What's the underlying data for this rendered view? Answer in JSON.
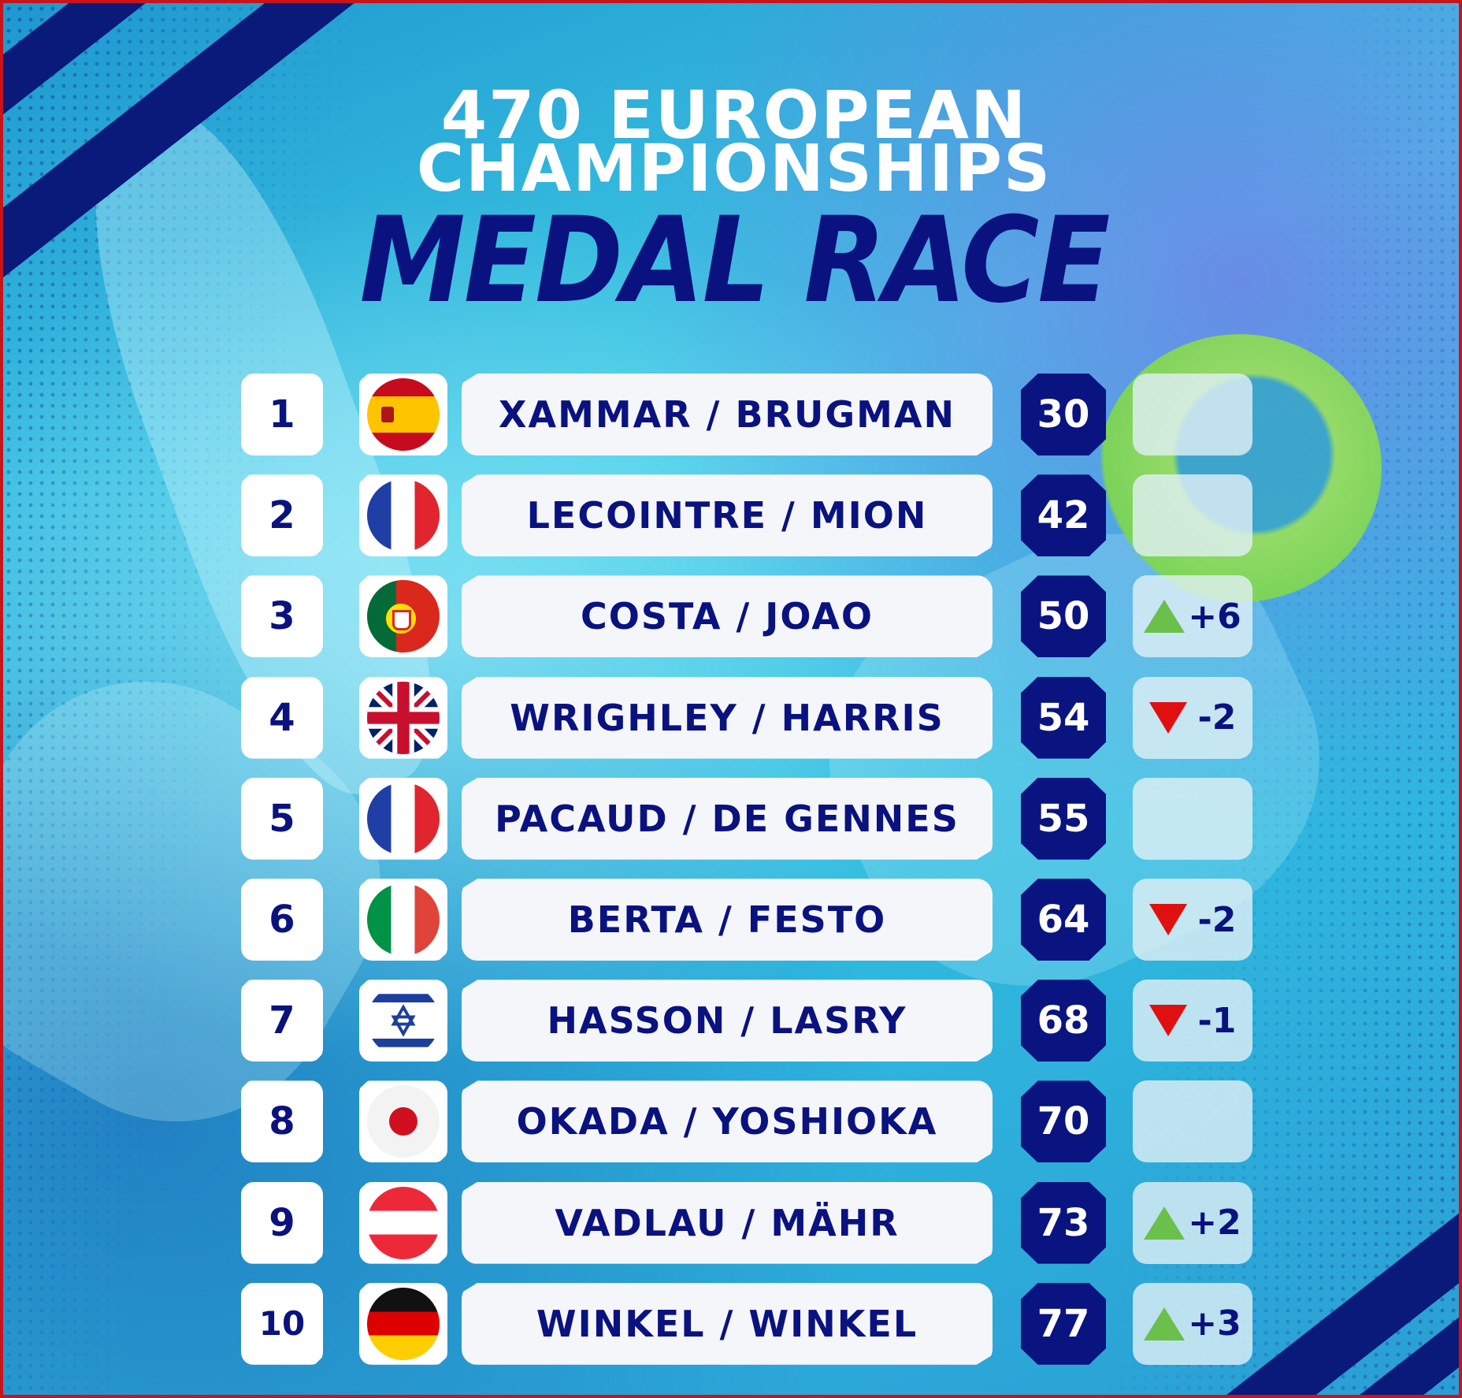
{
  "header": {
    "line1": "470 EUROPEAN",
    "line2": "CHAMPIONSHIPS",
    "line3": "MEDAL RACE"
  },
  "colors": {
    "navy": "#0a1280",
    "up": "#6ac04a",
    "down": "#e01010",
    "frame": "#c8141a"
  },
  "standings": [
    {
      "rank": "1",
      "flag": "spain-flag",
      "name": "XAMMAR / BRUGMAN",
      "points": "30",
      "direction": "none",
      "change": ""
    },
    {
      "rank": "2",
      "flag": "france-flag",
      "name": "LECOINTRE / MION",
      "points": "42",
      "direction": "none",
      "change": ""
    },
    {
      "rank": "3",
      "flag": "portugal-flag",
      "name": "COSTA / JOAO",
      "points": "50",
      "direction": "up",
      "change": "+6"
    },
    {
      "rank": "4",
      "flag": "uk-flag",
      "name": "WRIGHLEY / HARRIS",
      "points": "54",
      "direction": "down",
      "change": "-2"
    },
    {
      "rank": "5",
      "flag": "france-flag",
      "name": "PACAUD / DE GENNES",
      "points": "55",
      "direction": "none",
      "change": ""
    },
    {
      "rank": "6",
      "flag": "italy-flag",
      "name": "BERTA / FESTO",
      "points": "64",
      "direction": "down",
      "change": "-2"
    },
    {
      "rank": "7",
      "flag": "israel-flag",
      "name": "HASSON / LASRY",
      "points": "68",
      "direction": "down",
      "change": "-1"
    },
    {
      "rank": "8",
      "flag": "japan-flag",
      "name": "OKADA / YOSHIOKA",
      "points": "70",
      "direction": "none",
      "change": ""
    },
    {
      "rank": "9",
      "flag": "austria-flag",
      "name": "VADLAU / MÄHR",
      "points": "73",
      "direction": "up",
      "change": "+2"
    },
    {
      "rank": "10",
      "flag": "germany-flag",
      "name": "WINKEL / WINKEL",
      "points": "77",
      "direction": "up",
      "change": "+3"
    }
  ]
}
